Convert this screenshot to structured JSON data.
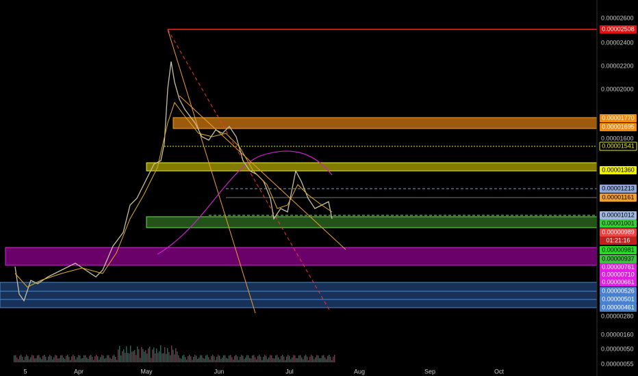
{
  "price_axis_labels": [
    "0.00002600",
    "0.00002400",
    "0.00002200",
    "0.00002000",
    "0.00001600",
    "0.00000280",
    "0.00000160",
    "0.00000050",
    "0.00000055"
  ],
  "price_tags": [
    "0.00002508",
    "0.00001770",
    "0.00001695",
    "0.00001541",
    "0.00001360",
    "0.00001213",
    "0.00001161",
    "0.00001012",
    "0.00001001",
    "0.00000989",
    "01:21:16",
    "0.00000981",
    "0.00000937",
    "0.00000761",
    "0.00000710",
    "0.00000661",
    "0.00000526",
    "0.00000501",
    "0.00000461"
  ],
  "time_labels": [
    "5",
    "Apr",
    "May",
    "Jun",
    "Jul",
    "Aug",
    "Sep",
    "Oct"
  ]
}
